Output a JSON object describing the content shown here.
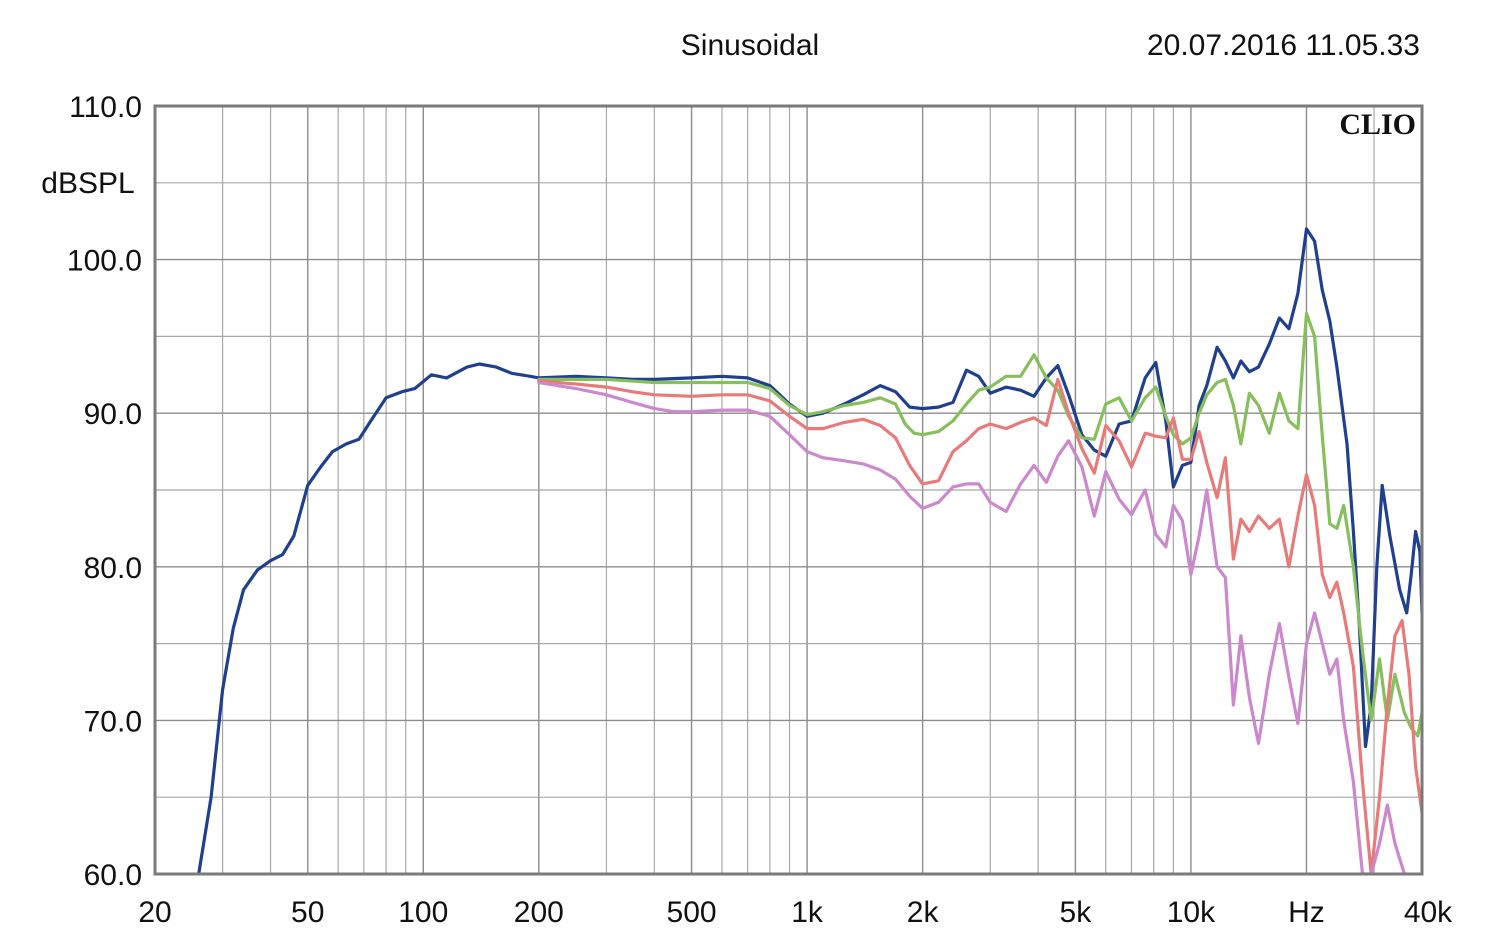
{
  "header": {
    "mode": "Sinusoidal",
    "timestamp": "20.07.2016 11.05.33"
  },
  "brand": "CLIO",
  "chart_data": {
    "type": "line",
    "xscale": "log",
    "xlim": [
      20,
      40000
    ],
    "ylim": [
      60,
      110
    ],
    "ylabel": "dBSPL",
    "xlabel": "Hz",
    "x_ticks": [
      {
        "value": 20,
        "label": "20"
      },
      {
        "value": 50,
        "label": "50"
      },
      {
        "value": 100,
        "label": "100"
      },
      {
        "value": 200,
        "label": "200"
      },
      {
        "value": 500,
        "label": "500"
      },
      {
        "value": 1000,
        "label": "1k"
      },
      {
        "value": 2000,
        "label": "2k"
      },
      {
        "value": 5000,
        "label": "5k"
      },
      {
        "value": 10000,
        "label": "10k"
      },
      {
        "value": 20000,
        "label": "Hz"
      },
      {
        "value": 40000,
        "label": "40k"
      }
    ],
    "y_ticks": [
      {
        "value": 110,
        "label": "110.0"
      },
      {
        "value": 100,
        "label": "100.0"
      },
      {
        "value": 90,
        "label": "90.0"
      },
      {
        "value": 80,
        "label": "80.0"
      },
      {
        "value": 70,
        "label": "70.0"
      },
      {
        "value": 60,
        "label": "60.0"
      }
    ],
    "grid": true,
    "series": [
      {
        "color": "#1f3f8f",
        "points": [
          [
            26,
            60
          ],
          [
            28,
            65
          ],
          [
            30,
            72
          ],
          [
            32,
            76
          ],
          [
            34,
            78.5
          ],
          [
            37,
            79.8
          ],
          [
            40,
            80.4
          ],
          [
            43,
            80.8
          ],
          [
            46,
            82
          ],
          [
            50,
            85.3
          ],
          [
            54,
            86.5
          ],
          [
            58,
            87.5
          ],
          [
            63,
            88
          ],
          [
            68,
            88.3
          ],
          [
            73,
            89.5
          ],
          [
            80,
            91
          ],
          [
            88,
            91.4
          ],
          [
            95,
            91.6
          ],
          [
            105,
            92.5
          ],
          [
            115,
            92.3
          ],
          [
            130,
            93
          ],
          [
            140,
            93.2
          ],
          [
            155,
            93
          ],
          [
            170,
            92.6
          ],
          [
            190,
            92.4
          ],
          [
            200,
            92.3
          ],
          [
            250,
            92.4
          ],
          [
            300,
            92.3
          ],
          [
            350,
            92.2
          ],
          [
            400,
            92.2
          ],
          [
            500,
            92.3
          ],
          [
            600,
            92.4
          ],
          [
            700,
            92.3
          ],
          [
            800,
            91.8
          ],
          [
            900,
            90.6
          ],
          [
            1000,
            89.8
          ],
          [
            1100,
            90
          ],
          [
            1250,
            90.6
          ],
          [
            1400,
            91.2
          ],
          [
            1550,
            91.8
          ],
          [
            1700,
            91.4
          ],
          [
            1850,
            90.4
          ],
          [
            2000,
            90.3
          ],
          [
            2200,
            90.4
          ],
          [
            2400,
            90.7
          ],
          [
            2600,
            92.8
          ],
          [
            2800,
            92.4
          ],
          [
            3000,
            91.3
          ],
          [
            3300,
            91.7
          ],
          [
            3600,
            91.5
          ],
          [
            3900,
            91.1
          ],
          [
            4200,
            92.3
          ],
          [
            4500,
            93.1
          ],
          [
            4800,
            91.2
          ],
          [
            5200,
            88.6
          ],
          [
            5600,
            87.6
          ],
          [
            6000,
            87.2
          ],
          [
            6500,
            89.3
          ],
          [
            7000,
            89.5
          ],
          [
            7600,
            92.3
          ],
          [
            8100,
            93.3
          ],
          [
            8600,
            89.5
          ],
          [
            9000,
            85.2
          ],
          [
            9500,
            86.6
          ],
          [
            10000,
            86.8
          ],
          [
            10500,
            90.5
          ],
          [
            11000,
            91.8
          ],
          [
            11700,
            94.3
          ],
          [
            12300,
            93.4
          ],
          [
            12900,
            92.3
          ],
          [
            13500,
            93.4
          ],
          [
            14200,
            92.7
          ],
          [
            15000,
            93
          ],
          [
            16000,
            94.5
          ],
          [
            17000,
            96.2
          ],
          [
            18000,
            95.5
          ],
          [
            19000,
            97.8
          ],
          [
            20000,
            102
          ],
          [
            21000,
            101.2
          ],
          [
            22000,
            98
          ],
          [
            23000,
            96
          ],
          [
            24000,
            93
          ],
          [
            25500,
            88
          ],
          [
            26500,
            82.3
          ],
          [
            27500,
            76
          ],
          [
            28500,
            68.3
          ],
          [
            29500,
            71
          ],
          [
            30500,
            80
          ],
          [
            31500,
            85.3
          ],
          [
            33000,
            82
          ],
          [
            35000,
            78.5
          ],
          [
            36500,
            77
          ],
          [
            37500,
            79.5
          ],
          [
            38500,
            82.3
          ],
          [
            39500,
            81
          ],
          [
            40000,
            77
          ]
        ]
      },
      {
        "color": "#86bf5c",
        "points": [
          [
            200,
            92.2
          ],
          [
            300,
            92.2
          ],
          [
            400,
            92
          ],
          [
            500,
            92
          ],
          [
            600,
            92
          ],
          [
            700,
            92
          ],
          [
            800,
            91.6
          ],
          [
            900,
            90.5
          ],
          [
            1000,
            89.9
          ],
          [
            1100,
            90.1
          ],
          [
            1250,
            90.5
          ],
          [
            1400,
            90.7
          ],
          [
            1550,
            91
          ],
          [
            1700,
            90.6
          ],
          [
            1800,
            89.3
          ],
          [
            1900,
            88.7
          ],
          [
            2000,
            88.6
          ],
          [
            2200,
            88.8
          ],
          [
            2400,
            89.5
          ],
          [
            2600,
            90.6
          ],
          [
            2800,
            91.5
          ],
          [
            3000,
            91.7
          ],
          [
            3300,
            92.4
          ],
          [
            3600,
            92.4
          ],
          [
            3900,
            93.8
          ],
          [
            4200,
            92.3
          ],
          [
            4500,
            91.5
          ],
          [
            4800,
            89.8
          ],
          [
            5200,
            88.4
          ],
          [
            5600,
            88.3
          ],
          [
            6000,
            90.6
          ],
          [
            6500,
            91
          ],
          [
            7000,
            89.5
          ],
          [
            7600,
            91
          ],
          [
            8100,
            91.7
          ],
          [
            8600,
            89.8
          ],
          [
            9000,
            88.6
          ],
          [
            9500,
            88
          ],
          [
            10000,
            88.4
          ],
          [
            10500,
            90
          ],
          [
            11000,
            91.2
          ],
          [
            11700,
            92
          ],
          [
            12300,
            92.2
          ],
          [
            12900,
            90.5
          ],
          [
            13500,
            88
          ],
          [
            14200,
            91.3
          ],
          [
            15000,
            90.5
          ],
          [
            16000,
            88.7
          ],
          [
            17000,
            91.3
          ],
          [
            18000,
            89.5
          ],
          [
            19000,
            89
          ],
          [
            20000,
            96.5
          ],
          [
            21000,
            95
          ],
          [
            22000,
            88.5
          ],
          [
            23000,
            82.8
          ],
          [
            24000,
            82.5
          ],
          [
            25000,
            84
          ],
          [
            26500,
            80
          ],
          [
            28000,
            74.5
          ],
          [
            29500,
            70
          ],
          [
            31000,
            74
          ],
          [
            32500,
            70
          ],
          [
            34000,
            73
          ],
          [
            36000,
            70.5
          ],
          [
            37500,
            69.5
          ],
          [
            39000,
            69
          ],
          [
            40000,
            70.5
          ]
        ]
      },
      {
        "color": "#e87a7a",
        "points": [
          [
            200,
            92.1
          ],
          [
            250,
            91.9
          ],
          [
            300,
            91.7
          ],
          [
            350,
            91.4
          ],
          [
            400,
            91.2
          ],
          [
            500,
            91.1
          ],
          [
            600,
            91.2
          ],
          [
            700,
            91.2
          ],
          [
            800,
            90.8
          ],
          [
            900,
            89.8
          ],
          [
            1000,
            89
          ],
          [
            1100,
            89
          ],
          [
            1250,
            89.4
          ],
          [
            1400,
            89.6
          ],
          [
            1550,
            89.2
          ],
          [
            1700,
            88.4
          ],
          [
            1850,
            86.6
          ],
          [
            2000,
            85.4
          ],
          [
            2200,
            85.6
          ],
          [
            2400,
            87.5
          ],
          [
            2600,
            88.2
          ],
          [
            2800,
            89
          ],
          [
            3000,
            89.3
          ],
          [
            3300,
            89
          ],
          [
            3600,
            89.4
          ],
          [
            3900,
            89.7
          ],
          [
            4200,
            89.2
          ],
          [
            4500,
            92.2
          ],
          [
            4800,
            90
          ],
          [
            5200,
            87.7
          ],
          [
            5600,
            86.1
          ],
          [
            6000,
            89.2
          ],
          [
            6500,
            88.2
          ],
          [
            7000,
            86.5
          ],
          [
            7600,
            88.7
          ],
          [
            8100,
            88.5
          ],
          [
            8600,
            88.4
          ],
          [
            9000,
            89.7
          ],
          [
            9500,
            87
          ],
          [
            10000,
            87
          ],
          [
            10500,
            88.8
          ],
          [
            11000,
            86.8
          ],
          [
            11700,
            84.5
          ],
          [
            12300,
            87.1
          ],
          [
            12900,
            80.5
          ],
          [
            13500,
            83.1
          ],
          [
            14200,
            82.3
          ],
          [
            15000,
            83.3
          ],
          [
            16000,
            82.5
          ],
          [
            17000,
            83.1
          ],
          [
            18000,
            80
          ],
          [
            19000,
            83.3
          ],
          [
            20000,
            86
          ],
          [
            21000,
            84
          ],
          [
            22000,
            79.5
          ],
          [
            23000,
            78
          ],
          [
            24000,
            79
          ],
          [
            25000,
            77
          ],
          [
            26500,
            73.5
          ],
          [
            28000,
            66
          ],
          [
            29500,
            60
          ],
          [
            31000,
            65
          ],
          [
            32500,
            71
          ],
          [
            34000,
            75.5
          ],
          [
            35500,
            76.5
          ],
          [
            37000,
            73
          ],
          [
            38500,
            67
          ],
          [
            40000,
            64
          ]
        ]
      },
      {
        "color": "#cc88cc",
        "points": [
          [
            200,
            92
          ],
          [
            250,
            91.6
          ],
          [
            300,
            91.2
          ],
          [
            350,
            90.7
          ],
          [
            400,
            90.3
          ],
          [
            450,
            90.1
          ],
          [
            500,
            90.1
          ],
          [
            600,
            90.2
          ],
          [
            700,
            90.2
          ],
          [
            800,
            89.8
          ],
          [
            900,
            88.6
          ],
          [
            1000,
            87.5
          ],
          [
            1100,
            87.1
          ],
          [
            1250,
            86.9
          ],
          [
            1400,
            86.7
          ],
          [
            1550,
            86.3
          ],
          [
            1700,
            85.7
          ],
          [
            1850,
            84.6
          ],
          [
            2000,
            83.8
          ],
          [
            2200,
            84.2
          ],
          [
            2400,
            85.2
          ],
          [
            2600,
            85.4
          ],
          [
            2800,
            85.4
          ],
          [
            3000,
            84.2
          ],
          [
            3300,
            83.6
          ],
          [
            3600,
            85.4
          ],
          [
            3900,
            86.6
          ],
          [
            4200,
            85.5
          ],
          [
            4500,
            87.2
          ],
          [
            4800,
            88.2
          ],
          [
            5200,
            86.5
          ],
          [
            5600,
            83.3
          ],
          [
            6000,
            86.2
          ],
          [
            6500,
            84.4
          ],
          [
            7000,
            83.4
          ],
          [
            7600,
            85
          ],
          [
            8100,
            82.1
          ],
          [
            8600,
            81.3
          ],
          [
            9000,
            84
          ],
          [
            9500,
            83
          ],
          [
            10000,
            79.5
          ],
          [
            10500,
            82
          ],
          [
            11000,
            85
          ],
          [
            11700,
            80
          ],
          [
            12300,
            79.3
          ],
          [
            12900,
            71
          ],
          [
            13500,
            75.5
          ],
          [
            14200,
            71.5
          ],
          [
            15000,
            68.5
          ],
          [
            16000,
            73
          ],
          [
            17000,
            76.3
          ],
          [
            18000,
            72.8
          ],
          [
            19000,
            69.8
          ],
          [
            20000,
            75
          ],
          [
            21000,
            77
          ],
          [
            22000,
            75
          ],
          [
            23000,
            73
          ],
          [
            24000,
            74
          ],
          [
            25000,
            70
          ],
          [
            26500,
            66
          ],
          [
            28000,
            60
          ],
          [
            29500,
            60
          ],
          [
            31000,
            62
          ],
          [
            32500,
            64.5
          ],
          [
            34000,
            62
          ],
          [
            36000,
            60
          ]
        ]
      }
    ]
  }
}
